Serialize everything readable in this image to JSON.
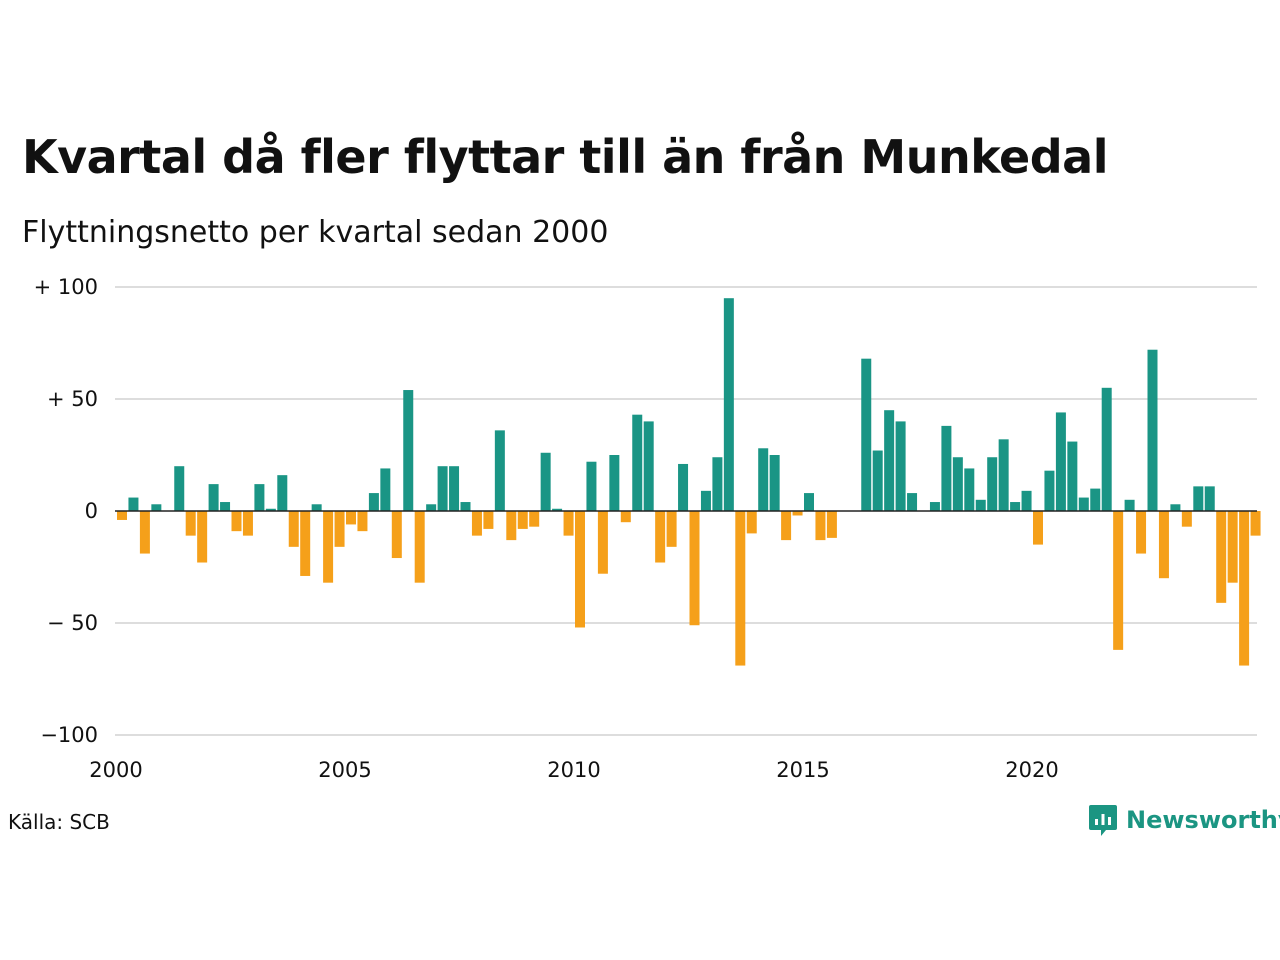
{
  "title": "Kvartal då fler flyttar till än från Munkedal",
  "subtitle": "Flyttningsnetto per kvartal sedan 2000",
  "source": "Källa: SCB",
  "brand": {
    "name": "Newsworthy",
    "icon": "newsworthy-logo-icon",
    "color": "#1b9582"
  },
  "colors": {
    "positive": "#1a9585",
    "negative": "#f5a01a",
    "grid": "#dddddd",
    "zero": "#222222"
  },
  "chart_data": {
    "type": "bar",
    "title": "Kvartal då fler flyttar till än från Munkedal",
    "subtitle": "Flyttningsnetto per kvartal sedan 2000",
    "ylim": [
      -100,
      100
    ],
    "yticks": [
      100,
      50,
      0,
      -50,
      -100
    ],
    "ytick_labels": [
      "+ 100",
      "+  50",
      "0",
      "− 50",
      "−100"
    ],
    "xlim": [
      2000,
      2024.75
    ],
    "xticks": [
      2000,
      2005,
      2010,
      2015,
      2020
    ],
    "xtick_labels": [
      "2000",
      "2005",
      "2010",
      "2015",
      "2020"
    ],
    "grid": true,
    "categories": [
      "2000 K1",
      "2000 K2",
      "2000 K3",
      "2000 K4",
      "2001 K1",
      "2001 K2",
      "2001 K3",
      "2001 K4",
      "2002 K1",
      "2002 K2",
      "2002 K3",
      "2002 K4",
      "2003 K1",
      "2003 K2",
      "2003 K3",
      "2003 K4",
      "2004 K1",
      "2004 K2",
      "2004 K3",
      "2004 K4",
      "2005 K1",
      "2005 K2",
      "2005 K3",
      "2005 K4",
      "2006 K1",
      "2006 K2",
      "2006 K3",
      "2006 K4",
      "2007 K1",
      "2007 K2",
      "2007 K3",
      "2007 K4",
      "2008 K1",
      "2008 K2",
      "2008 K3",
      "2008 K4",
      "2009 K1",
      "2009 K2",
      "2009 K3",
      "2009 K4",
      "2010 K1",
      "2010 K2",
      "2010 K3",
      "2010 K4",
      "2011 K1",
      "2011 K2",
      "2011 K3",
      "2011 K4",
      "2012 K1",
      "2012 K2",
      "2012 K3",
      "2012 K4",
      "2013 K1",
      "2013 K2",
      "2013 K3",
      "2013 K4",
      "2014 K1",
      "2014 K2",
      "2014 K3",
      "2014 K4",
      "2015 K1",
      "2015 K2",
      "2015 K3",
      "2015 K4",
      "2016 K1",
      "2016 K2",
      "2016 K3",
      "2016 K4",
      "2017 K1",
      "2017 K2",
      "2017 K3",
      "2017 K4",
      "2018 K1",
      "2018 K2",
      "2018 K3",
      "2018 K4",
      "2019 K1",
      "2019 K2",
      "2019 K3",
      "2019 K4",
      "2020 K1",
      "2020 K2",
      "2020 K3",
      "2020 K4",
      "2021 K1",
      "2021 K2",
      "2021 K3",
      "2021 K4",
      "2022 K1",
      "2022 K2",
      "2022 K3",
      "2022 K4",
      "2023 K1",
      "2023 K2",
      "2023 K3",
      "2023 K4",
      "2024 K1",
      "2024 K2",
      "2024 K3",
      "2024 K4"
    ],
    "values": [
      -4,
      6,
      -19,
      3,
      0,
      20,
      -11,
      -23,
      12,
      4,
      -9,
      -11,
      12,
      1,
      16,
      -16,
      -29,
      3,
      -32,
      -16,
      -6,
      -9,
      8,
      19,
      -21,
      54,
      -32,
      3,
      20,
      20,
      4,
      -11,
      -8,
      36,
      -13,
      -8,
      -7,
      26,
      1,
      -11,
      -52,
      22,
      -28,
      25,
      -5,
      43,
      40,
      -23,
      -16,
      21,
      -51,
      9,
      24,
      95,
      -69,
      -10,
      28,
      25,
      -13,
      -2,
      8,
      -13,
      -12,
      0,
      0,
      68,
      27,
      45,
      40,
      8,
      0,
      4,
      38,
      24,
      19,
      5,
      24,
      32,
      4,
      9,
      -15,
      18,
      44,
      31,
      6,
      10,
      55,
      -62,
      5,
      -19,
      72,
      -30,
      3,
      -7,
      11,
      11,
      -41,
      -32,
      -69,
      -11
    ]
  }
}
